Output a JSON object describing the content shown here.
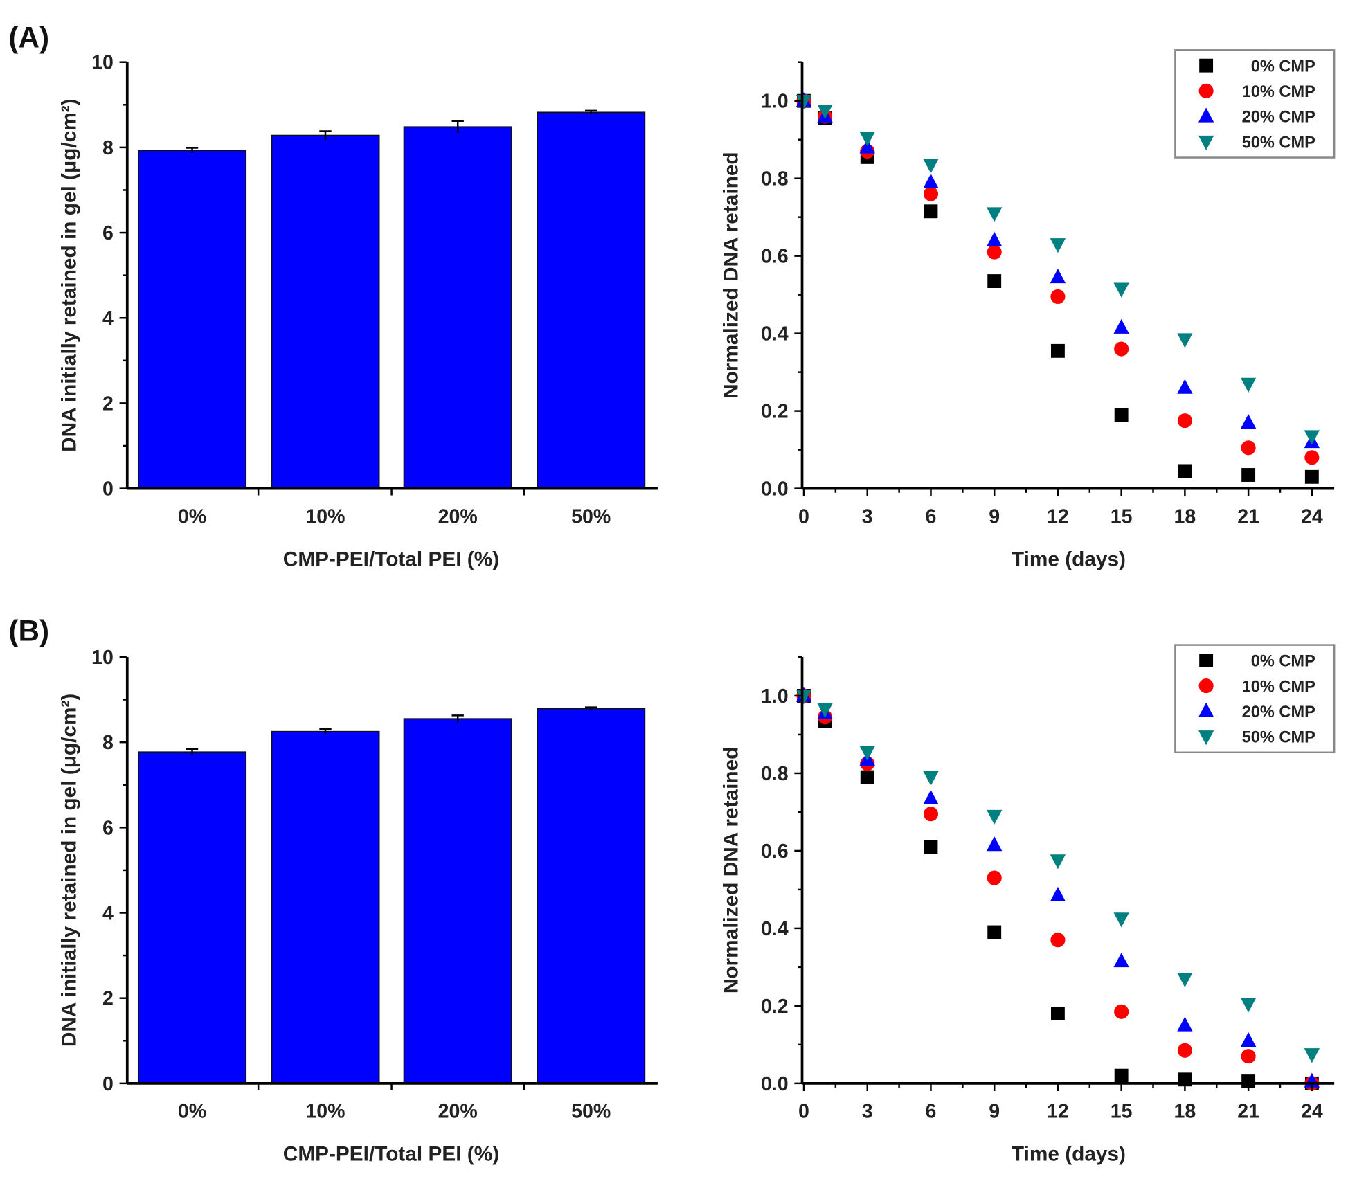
{
  "colors": {
    "bar": "#0000ff",
    "s0": "#000000",
    "s10": "#ff0000",
    "s20": "#0000ff",
    "s50": "#008080"
  },
  "chart_data": [
    {
      "panel": "(A)",
      "type": "bar",
      "categories": [
        "0%",
        "10%",
        "20%",
        "50%"
      ],
      "values": [
        7.93,
        8.28,
        8.48,
        8.82
      ],
      "errors": [
        0.06,
        0.1,
        0.14,
        0.04
      ],
      "xlabel": "CMP-PEI/Total PEI (%)",
      "ylabel": "DNA initially retained in gel (μg/cm²)",
      "ylim": [
        0,
        10
      ],
      "yticks": [
        "0",
        "2",
        "4",
        "6",
        "8",
        "10"
      ]
    },
    {
      "type": "scatter",
      "x": [
        0,
        1,
        3,
        6,
        9,
        12,
        15,
        18,
        21,
        24
      ],
      "xlabel": "Time (days)",
      "ylabel": "Normalized DNA retained",
      "xlim": [
        0,
        25
      ],
      "ylim": [
        0,
        1.1
      ],
      "xticks": [
        "0",
        "3",
        "6",
        "9",
        "12",
        "15",
        "18",
        "21",
        "24"
      ],
      "yticks": [
        "0.0",
        "0.2",
        "0.4",
        "0.6",
        "0.8",
        "1.0"
      ],
      "legend": "top-right",
      "series": [
        {
          "name": "0% CMP",
          "marker": "square",
          "values": [
            1.0,
            0.955,
            0.855,
            0.715,
            0.535,
            0.355,
            0.19,
            0.045,
            0.035,
            0.03
          ]
        },
        {
          "name": "10% CMP",
          "marker": "circle",
          "values": [
            1.0,
            0.96,
            0.87,
            0.76,
            0.61,
            0.495,
            0.36,
            0.175,
            0.105,
            0.08
          ]
        },
        {
          "name": "20% CMP",
          "marker": "triangle-up",
          "values": [
            1.0,
            0.96,
            0.88,
            0.79,
            0.64,
            0.545,
            0.415,
            0.26,
            0.17,
            0.12
          ]
        },
        {
          "name": "50% CMP",
          "marker": "triangle-down",
          "values": [
            1.0,
            0.975,
            0.905,
            0.835,
            0.71,
            0.63,
            0.515,
            0.385,
            0.27,
            0.135
          ]
        }
      ]
    },
    {
      "panel": "(B)",
      "type": "bar",
      "categories": [
        "0%",
        "10%",
        "20%",
        "50%"
      ],
      "values": [
        7.77,
        8.25,
        8.55,
        8.79
      ],
      "errors": [
        0.07,
        0.06,
        0.08,
        0.03
      ],
      "xlabel": "CMP-PEI/Total PEI (%)",
      "ylabel": "DNA initially retained in gel (μg/cm²)",
      "ylim": [
        0,
        10
      ],
      "yticks": [
        "0",
        "2",
        "4",
        "6",
        "8",
        "10"
      ]
    },
    {
      "type": "scatter",
      "x": [
        0,
        1,
        3,
        6,
        9,
        12,
        15,
        18,
        21,
        24
      ],
      "xlabel": "Time (days)",
      "ylabel": "Normalized DNA retained",
      "xlim": [
        0,
        25
      ],
      "ylim": [
        0,
        1.1
      ],
      "xticks": [
        "0",
        "3",
        "6",
        "9",
        "12",
        "15",
        "18",
        "21",
        "24"
      ],
      "yticks": [
        "0.0",
        "0.2",
        "0.4",
        "0.6",
        "0.8",
        "1.0"
      ],
      "legend": "top-right",
      "series": [
        {
          "name": "0% CMP",
          "marker": "square",
          "values": [
            1.0,
            0.935,
            0.79,
            0.61,
            0.39,
            0.18,
            0.02,
            0.01,
            0.005,
            0.0
          ]
        },
        {
          "name": "10% CMP",
          "marker": "circle",
          "values": [
            1.0,
            0.945,
            0.825,
            0.695,
            0.53,
            0.37,
            0.185,
            0.085,
            0.07,
            0.0
          ]
        },
        {
          "name": "20% CMP",
          "marker": "triangle-up",
          "values": [
            1.0,
            0.955,
            0.835,
            0.735,
            0.615,
            0.485,
            0.315,
            0.15,
            0.11,
            0.005
          ]
        },
        {
          "name": "50% CMP",
          "marker": "triangle-down",
          "values": [
            1.0,
            0.965,
            0.855,
            0.79,
            0.69,
            0.575,
            0.425,
            0.27,
            0.205,
            0.075
          ]
        }
      ]
    }
  ]
}
